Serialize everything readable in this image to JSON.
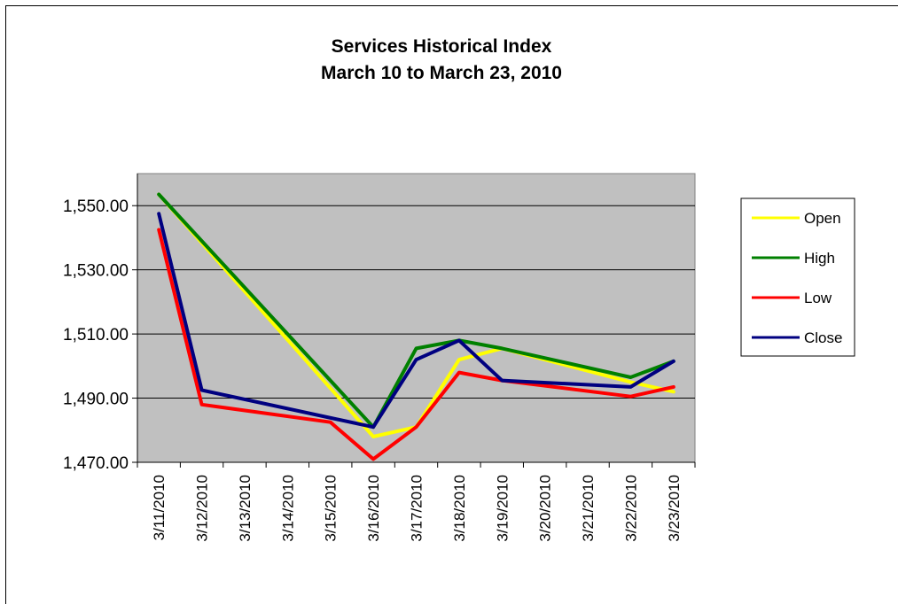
{
  "chart_data": {
    "type": "line",
    "title": "Services Historical Index",
    "subtitle": "March 10 to March 23, 2010",
    "xlabel": "",
    "ylabel": "",
    "categories": [
      "3/11/2010",
      "3/12/2010",
      "3/13/2010",
      "3/14/2010",
      "3/15/2010",
      "3/16/2010",
      "3/17/2010",
      "3/18/2010",
      "3/19/2010",
      "3/20/2010",
      "3/21/2010",
      "3/22/2010",
      "3/23/2010"
    ],
    "ylim": [
      1470,
      1560
    ],
    "yticks": [
      1470,
      1490,
      1510,
      1530,
      1550
    ],
    "ytick_labels": [
      "1,470.00",
      "1,490.00",
      "1,510.00",
      "1,530.00",
      "1,550.00"
    ],
    "grid": true,
    "legend_position": "right",
    "plot_background": "#c0c0c0",
    "series": [
      {
        "name": "Open",
        "color": "#ffff00",
        "values": [
          1553.5,
          null,
          null,
          null,
          null,
          1478,
          1481,
          1502,
          1505.5,
          null,
          null,
          1495,
          1492
        ]
      },
      {
        "name": "High",
        "color": "#008000",
        "values": [
          1553.5,
          null,
          null,
          null,
          null,
          1481,
          1505.5,
          1508,
          1505.5,
          null,
          null,
          1496.5,
          1501.5
        ]
      },
      {
        "name": "Low",
        "color": "#ff0000",
        "values": [
          1542.5,
          1488,
          null,
          null,
          1482.5,
          1471,
          1481,
          1498,
          1495.5,
          null,
          null,
          1490.5,
          1493.5
        ]
      },
      {
        "name": "Close",
        "color": "#000080",
        "values": [
          1547.5,
          1492.5,
          null,
          null,
          null,
          1481,
          1502,
          1508,
          1495.5,
          null,
          null,
          1493.5,
          1501.5
        ]
      }
    ]
  }
}
